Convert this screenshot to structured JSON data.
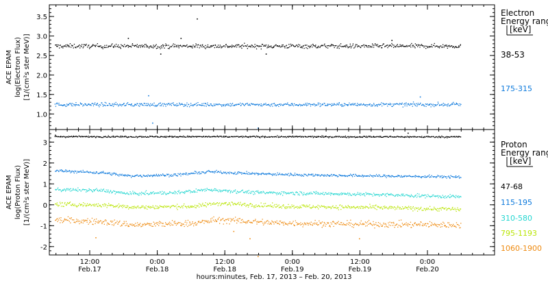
{
  "chart_data": [
    {
      "type": "scatter",
      "ylabel_lines": [
        "ACE EPAM",
        "log(Electron Flux)",
        "[1/(cm²s ster MeV)]"
      ],
      "yticks": [
        "1.0",
        "1.5",
        "2.0",
        "2.5",
        "3.0",
        "3.5"
      ],
      "ylim": [
        0.6,
        3.8
      ],
      "legend_title_lines": [
        "Electron",
        "Energy range",
        "[keV]"
      ],
      "series": [
        {
          "name": "38-53",
          "color": "#000000",
          "mean": 2.75,
          "spread": 0.06,
          "trend": [
            [
              0,
              2.75
            ],
            [
              1,
              2.75
            ]
          ],
          "outliers": [
            [
              0.35,
              3.45
            ],
            [
              0.26,
              2.55
            ],
            [
              0.31,
              2.95
            ],
            [
              0.52,
              2.55
            ],
            [
              0.83,
              2.9
            ],
            [
              0.18,
              2.95
            ]
          ]
        },
        {
          "name": "175-315",
          "color": "#0a78dc",
          "mean": 1.25,
          "spread": 0.05,
          "trend": [
            [
              0,
              1.25
            ],
            [
              1,
              1.25
            ]
          ],
          "outliers": [
            [
              0.24,
              0.78
            ],
            [
              0.23,
              1.48
            ],
            [
              0.5,
              0.65
            ],
            [
              0.9,
              1.45
            ]
          ]
        }
      ]
    },
    {
      "type": "scatter",
      "ylabel_lines": [
        "ACE EPAM",
        "log(Proton Flux)",
        "[1/(cm²s ster MeV)]"
      ],
      "yticks": [
        "-2",
        "-1",
        "0",
        "1",
        "2",
        "3"
      ],
      "ylim": [
        -2.4,
        3.6
      ],
      "legend_title_lines": [
        "Proton",
        "Energy range",
        "[keV]"
      ],
      "series": [
        {
          "name": "47-68",
          "color": "#000000",
          "mean": 3.27,
          "spread": 0.04,
          "trend": [
            [
              0,
              3.28
            ],
            [
              1,
              3.27
            ]
          ],
          "outliers": [
            [
              0.87,
              3.45
            ],
            [
              0.0,
              3.35
            ]
          ]
        },
        {
          "name": "115-195",
          "color": "#0a78dc",
          "mean": 1.5,
          "spread": 0.07,
          "trend": [
            [
              0,
              1.65
            ],
            [
              0.12,
              1.55
            ],
            [
              0.18,
              1.4
            ],
            [
              0.3,
              1.45
            ],
            [
              0.38,
              1.6
            ],
            [
              0.5,
              1.5
            ],
            [
              0.7,
              1.42
            ],
            [
              1,
              1.35
            ]
          ],
          "outliers": []
        },
        {
          "name": "310-580",
          "color": "#22d6d0",
          "mean": 0.7,
          "spread": 0.09,
          "trend": [
            [
              0,
              0.75
            ],
            [
              0.12,
              0.7
            ],
            [
              0.18,
              0.55
            ],
            [
              0.3,
              0.6
            ],
            [
              0.38,
              0.75
            ],
            [
              0.5,
              0.6
            ],
            [
              0.7,
              0.55
            ],
            [
              1,
              0.4
            ]
          ],
          "outliers": []
        },
        {
          "name": "795-1193",
          "color": "#b8e400",
          "mean": 0.0,
          "spread": 0.11,
          "trend": [
            [
              0,
              0.05
            ],
            [
              0.12,
              0.0
            ],
            [
              0.2,
              -0.1
            ],
            [
              0.35,
              -0.05
            ],
            [
              0.4,
              0.1
            ],
            [
              0.55,
              -0.05
            ],
            [
              0.75,
              -0.1
            ],
            [
              1,
              -0.2
            ]
          ],
          "outliers": []
        },
        {
          "name": "1060-1900",
          "color": "#ee8a10",
          "mean": -0.8,
          "spread": 0.16,
          "trend": [
            [
              0,
              -0.7
            ],
            [
              0.12,
              -0.8
            ],
            [
              0.2,
              -0.95
            ],
            [
              0.35,
              -0.85
            ],
            [
              0.4,
              -0.7
            ],
            [
              0.55,
              -0.85
            ],
            [
              0.75,
              -0.9
            ],
            [
              1,
              -0.95
            ]
          ],
          "outliers": [
            [
              0.1,
              -1.55
            ],
            [
              0.44,
              -1.25
            ],
            [
              0.48,
              -1.6
            ],
            [
              0.75,
              -1.6
            ],
            [
              0.5,
              -2.45
            ]
          ]
        }
      ]
    }
  ],
  "xaxis": {
    "ticks": [
      {
        "time": "12:00",
        "date": "Feb.17"
      },
      {
        "time": "0:00",
        "date": "Feb.18"
      },
      {
        "time": "12:00",
        "date": "Feb.18"
      },
      {
        "time": "0:00",
        "date": "Feb.19"
      },
      {
        "time": "12:00",
        "date": "Feb.19"
      },
      {
        "time": "0:00",
        "date": "Feb.20"
      }
    ],
    "label": "hours:minutes, Feb. 17, 2013 – Feb. 20, 2013"
  }
}
